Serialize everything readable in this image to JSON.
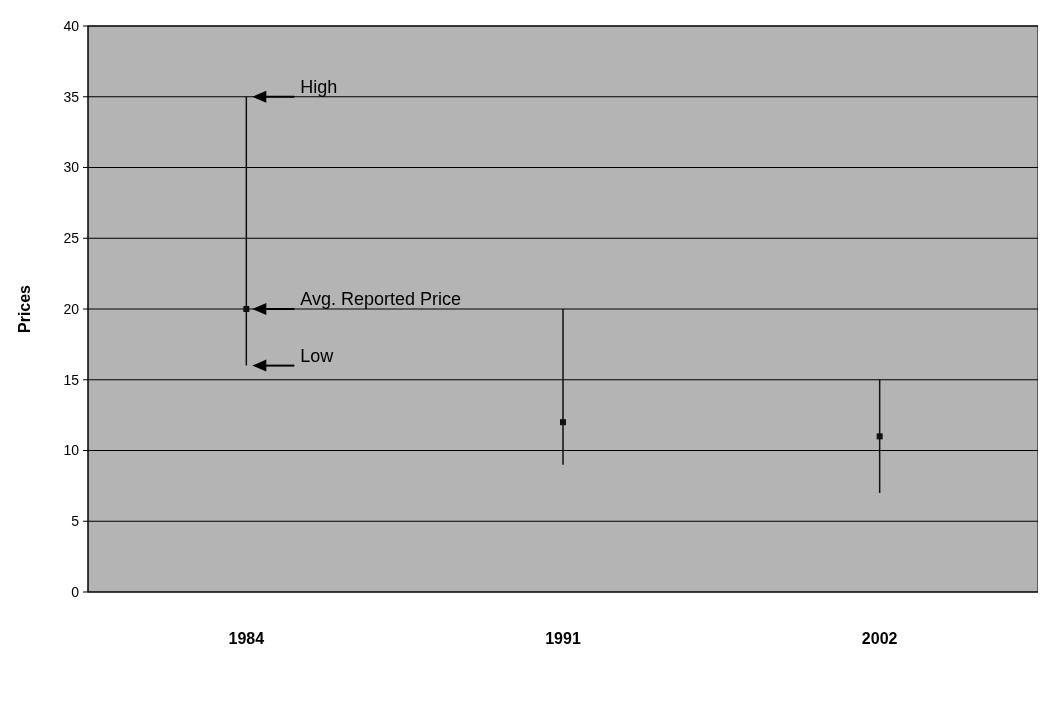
{
  "chart_data": {
    "type": "scatter",
    "ylabel": "Prices",
    "categories": [
      "1984",
      "1991",
      "2002"
    ],
    "series": [
      {
        "color": "#111111",
        "values": [
          20,
          12,
          11
        ],
        "errors": [
          [
            16,
            35
          ],
          [
            9,
            20
          ],
          [
            7,
            15
          ]
        ]
      }
    ],
    "ylim": [
      0,
      40
    ],
    "yticks": [
      0,
      5,
      10,
      15,
      20,
      25,
      30,
      35,
      40
    ],
    "grid": "y",
    "marker": "square",
    "annotations": [
      {
        "text": "High",
        "x": "1984",
        "y": 35
      },
      {
        "text": "Avg. Reported Price",
        "x": "1984",
        "y": 20
      },
      {
        "text": "Low",
        "x": "1984",
        "y": 16
      }
    ]
  }
}
